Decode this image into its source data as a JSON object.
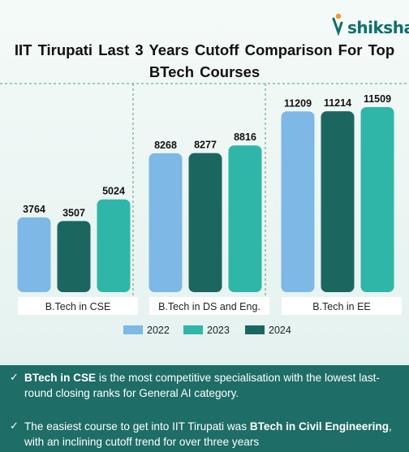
{
  "brand": {
    "name": "shiksha"
  },
  "chart_data": {
    "type": "bar",
    "title": "IIT Tirupati  Last 3 Years  Cutoff  Comparison  For Top BTech Courses",
    "categories": [
      "B.Tech in CSE",
      "B.Tech in DS and Eng.",
      "B.Tech in EE"
    ],
    "series": [
      {
        "name": "2022",
        "values": [
          3764,
          8268,
          11209
        ]
      },
      {
        "name": "2023",
        "values": [
          5024,
          8816,
          11509
        ]
      },
      {
        "name": "2024",
        "values": [
          3507,
          8277,
          11214
        ]
      }
    ],
    "bar_order": [
      "2022",
      "2024",
      "2023"
    ],
    "colors": {
      "2022": "#7db8e6",
      "2023": "#2fb6a8",
      "2024": "#1c6660"
    },
    "legend": "bottom-center",
    "grid": false
  },
  "notes": [
    {
      "bold": "BTech in CSE",
      "rest": " is the most competitive specialisation with the lowest last-round closing ranks for General AI category."
    },
    {
      "pre": "The easiest course to get into IIT Tirupati was ",
      "bold": "BTech in Civil Engineering",
      "post": ", with an inclining cutoff trend for over three years"
    }
  ]
}
